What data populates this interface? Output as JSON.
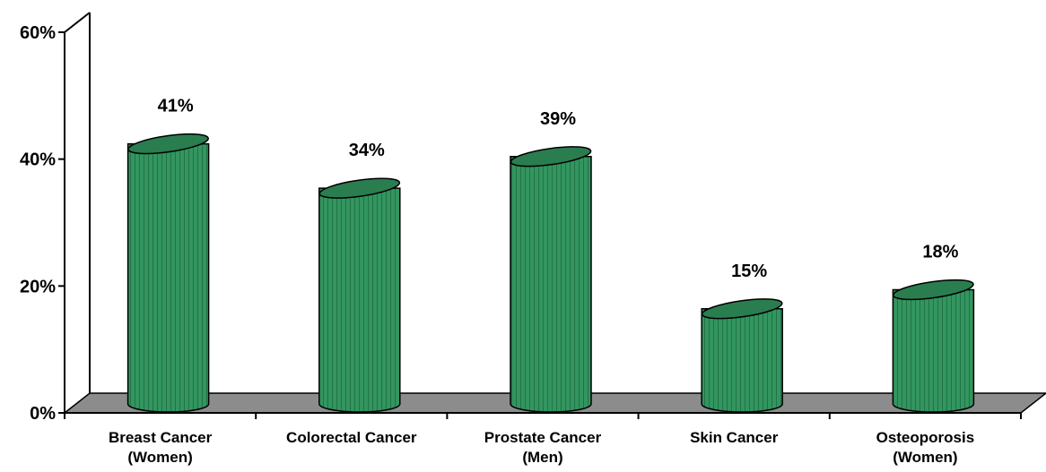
{
  "chart_data": {
    "type": "bar",
    "style": "3d-cylinder",
    "categories": [
      [
        "Breast Cancer",
        "(Women)"
      ],
      [
        "Colorectal Cancer"
      ],
      [
        "Prostate Cancer",
        "(Men)"
      ],
      [
        "Skin Cancer"
      ],
      [
        "Osteoporosis",
        "(Women)"
      ]
    ],
    "values": [
      41,
      34,
      39,
      15,
      18
    ],
    "data_labels": [
      "41%",
      "34%",
      "39%",
      "15%",
      "18%"
    ],
    "ylim": [
      0,
      60
    ],
    "yticks": [
      0,
      20,
      40,
      60
    ],
    "ytick_labels": [
      "0%",
      "20%",
      "40%",
      "60%"
    ],
    "grid": false,
    "legend": "none",
    "colors": {
      "bar": "#2e8b57",
      "bar_dark": "#1f6a40",
      "bar_top": "#2a7d4f",
      "floor": "#8c8c8c",
      "outline": "#000000"
    }
  }
}
